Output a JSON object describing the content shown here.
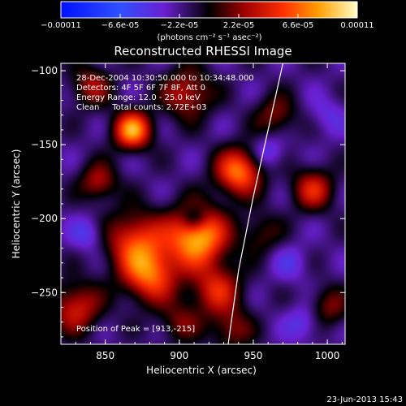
{
  "chart_data": {
    "type": "heatmap",
    "title": "Reconstructed RHESSI Image",
    "xlabel": "Heliocentric X (arcsec)",
    "ylabel": "Heliocentric Y (arcsec)",
    "xlim": [
      820,
      1012
    ],
    "ylim": [
      -285,
      -95
    ],
    "x_ticks": [
      850,
      900,
      950,
      1000
    ],
    "y_ticks": [
      -100,
      -150,
      -200,
      -250
    ],
    "colorbar": {
      "range": [
        -0.00011,
        0.00011
      ],
      "tick_values": [
        -0.00011,
        -6.6e-05,
        -2.2e-05,
        2.2e-05,
        6.6e-05,
        0.00011
      ],
      "tick_labels": [
        "-0.00011",
        "-6.6e-05",
        "-2.2e-05",
        "2.2e-05",
        "6.6e-05",
        "0.00011"
      ],
      "unit_label": "(photons cm⁻² s⁻¹ asec⁻²)"
    },
    "annotations": [
      "28-Dec-2004 10:30:50.000 to 10:34:48.000",
      "Detectors: 4F 5F 6F 7F 8F, Att 0",
      "Energy Range: 12.0 - 25.0 keV",
      "Clean     Total counts: 2.72E+03"
    ],
    "peak_label": "Position of Peak = [913,-215]",
    "peak_position": [
      913,
      -215
    ],
    "sources": [
      {
        "x": 912,
        "y": -212,
        "amplitude": 0.00011,
        "sigma": 14
      },
      {
        "x": 870,
        "y": -215,
        "amplitude": 7e-05,
        "sigma": 14
      },
      {
        "x": 880,
        "y": -238,
        "amplitude": 8e-05,
        "sigma": 13
      },
      {
        "x": 925,
        "y": -248,
        "amplitude": 6e-05,
        "sigma": 12
      },
      {
        "x": 868,
        "y": -140,
        "amplitude": 0.0001,
        "sigma": 9
      },
      {
        "x": 940,
        "y": -168,
        "amplitude": 9e-05,
        "sigma": 11
      },
      {
        "x": 905,
        "y": -115,
        "amplitude": 5.5e-05,
        "sigma": 12
      },
      {
        "x": 845,
        "y": -175,
        "amplitude": 5e-05,
        "sigma": 9
      },
      {
        "x": 965,
        "y": -130,
        "amplitude": 4e-05,
        "sigma": 10
      },
      {
        "x": 990,
        "y": -180,
        "amplitude": 6e-05,
        "sigma": 10
      },
      {
        "x": 1000,
        "y": -260,
        "amplitude": 4e-05,
        "sigma": 10
      },
      {
        "x": 830,
        "y": -260,
        "amplitude": 6e-05,
        "sigma": 12
      },
      {
        "x": 935,
        "y": -275,
        "amplitude": 4e-05,
        "sigma": 10
      },
      {
        "x": 900,
        "y": -270,
        "amplitude": 3.5e-05,
        "sigma": 10
      },
      {
        "x": 840,
        "y": -110,
        "amplitude": 4.5e-05,
        "sigma": 10
      },
      {
        "x": 955,
        "y": -210,
        "amplitude": 3e-05,
        "sigma": 10
      },
      {
        "x": 910,
        "y": -200,
        "amplitude": -4e-05,
        "sigma": 6
      },
      {
        "x": 838,
        "y": -210,
        "amplitude": -3e-05,
        "sigma": 8
      },
      {
        "x": 960,
        "y": -155,
        "amplitude": -3e-05,
        "sigma": 8
      },
      {
        "x": 985,
        "y": -270,
        "amplitude": -3e-05,
        "sigma": 9
      },
      {
        "x": 1000,
        "y": -130,
        "amplitude": -2e-05,
        "sigma": 9
      },
      {
        "x": 975,
        "y": -230,
        "amplitude": -2e-05,
        "sigma": 9
      }
    ],
    "background": -2e-05,
    "limb_curve": {
      "x": [
        970,
        960,
        950,
        940,
        933
      ],
      "y": [
        -95,
        -140,
        -185,
        -235,
        -285
      ]
    },
    "grid": false,
    "legend": "none"
  },
  "footer": {
    "timestamp": "23-Jun-2013 15:43"
  },
  "colors": {
    "background": "#000000",
    "text": "#ffffff",
    "limb": "#ffffff"
  }
}
